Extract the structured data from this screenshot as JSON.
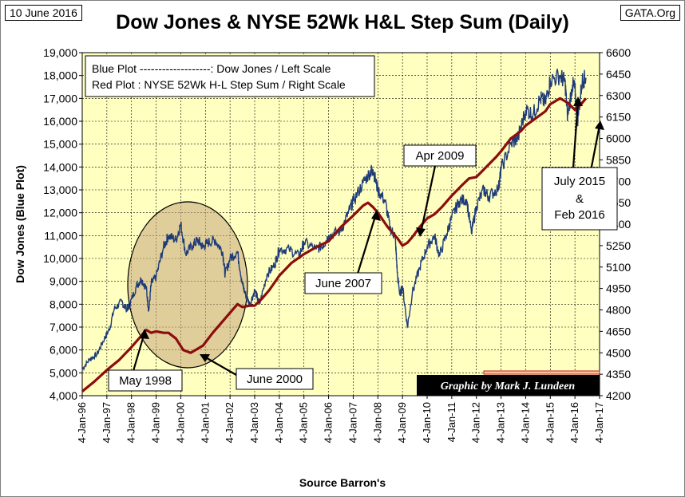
{
  "header": {
    "date": "10 June 2016",
    "source_site": "GATA.Org",
    "title": "Dow Jones & NYSE 52Wk H&L Step Sum (Daily)"
  },
  "legend": {
    "line1": "Blue Plot -------------------:  Dow Jones / Left Scale",
    "line2": "Red Plot : NYSE 52Wk H-L Step Sum / Right Scale"
  },
  "credit": "Graphic by Mark J. Lundeen",
  "colors": {
    "plot_bg": "#ffffc0",
    "blue": "#1f3c78",
    "red": "#8b0d0d",
    "circle": "#c6a57a"
  },
  "chart_data": {
    "type": "line",
    "title": "Dow Jones & NYSE 52Wk H&L Step Sum (Daily)",
    "xlabel": "Source Barron's",
    "ylabel_left": "Dow Jones    (Blue Plot)",
    "ylabel_right": "",
    "x_range": [
      1996.0,
      2017.0
    ],
    "ylim_left": [
      4000,
      19000
    ],
    "ylim_right": [
      4200,
      6600
    ],
    "grid": true,
    "x_ticks": [
      1996,
      1997,
      1998,
      1999,
      2000,
      2001,
      2002,
      2003,
      2004,
      2005,
      2006,
      2007,
      2008,
      2009,
      2010,
      2011,
      2012,
      2013,
      2014,
      2015,
      2016,
      2017
    ],
    "x_tick_labels": [
      "4-Jan-96",
      "4-Jan-97",
      "4-Jan-98",
      "4-Jan-99",
      "4-Jan-00",
      "4-Jan-01",
      "4-Jan-02",
      "4-Jan-03",
      "4-Jan-04",
      "4-Jan-05",
      "4-Jan-06",
      "4-Jan-07",
      "4-Jan-08",
      "4-Jan-09",
      "4-Jan-10",
      "4-Jan-11",
      "4-Jan-12",
      "4-Jan-13",
      "4-Jan-14",
      "4-Jan-15",
      "4-Jan-16",
      "4-Jan-17"
    ],
    "y_left_ticks": [
      4000,
      5000,
      6000,
      7000,
      8000,
      9000,
      10000,
      11000,
      12000,
      13000,
      14000,
      15000,
      16000,
      17000,
      18000,
      19000
    ],
    "y_left_tick_labels": [
      "4,000",
      "5,000",
      "6,000",
      "7,000",
      "8,000",
      "9,000",
      "10,000",
      "11,000",
      "12,000",
      "13,000",
      "14,000",
      "15,000",
      "16,000",
      "17,000",
      "18,000",
      "19,000"
    ],
    "y_right_ticks": [
      4200,
      4350,
      4500,
      4650,
      4800,
      4950,
      5100,
      5250,
      5400,
      5550,
      5700,
      5850,
      6000,
      6150,
      6300,
      6450,
      6600
    ],
    "y_right_tick_labels": [
      "4200",
      "4350",
      "4500",
      "4650",
      "4800",
      "4950",
      "5100",
      "5250",
      "5400",
      "5550",
      "5700",
      "5850",
      "6000",
      "6150",
      "6300",
      "6450",
      "6600"
    ],
    "series": [
      {
        "name": "Dow Jones (Blue Plot, Left Scale)",
        "axis": "left",
        "x": [
          1996.0,
          1996.3,
          1996.6,
          1996.9,
          1997.1,
          1997.3,
          1997.6,
          1997.8,
          1997.9,
          1998.2,
          1998.4,
          1998.6,
          1998.7,
          1998.8,
          1999.0,
          1999.3,
          1999.5,
          1999.8,
          2000.0,
          2000.2,
          2000.5,
          2000.7,
          2000.9,
          2001.1,
          2001.4,
          2001.7,
          2001.8,
          2002.0,
          2002.3,
          2002.5,
          2002.6,
          2002.8,
          2003.0,
          2003.2,
          2003.5,
          2003.8,
          2004.0,
          2004.4,
          2004.8,
          2005.0,
          2005.5,
          2005.8,
          2006.0,
          2006.5,
          2006.8,
          2007.0,
          2007.4,
          2007.7,
          2007.8,
          2008.0,
          2008.3,
          2008.5,
          2008.7,
          2008.8,
          2008.9,
          2009.0,
          2009.2,
          2009.4,
          2009.7,
          2010.0,
          2010.3,
          2010.5,
          2010.8,
          2011.0,
          2011.3,
          2011.6,
          2011.8,
          2012.0,
          2012.3,
          2012.5,
          2012.9,
          2013.0,
          2013.4,
          2013.7,
          2014.0,
          2014.3,
          2014.6,
          2014.8,
          2015.0,
          2015.4,
          2015.6,
          2015.7,
          2015.9,
          2016.0,
          2016.1,
          2016.3,
          2016.45
        ],
        "values": [
          5150,
          5600,
          5800,
          6500,
          6900,
          7800,
          8100,
          7800,
          7900,
          8800,
          9100,
          8700,
          7700,
          8900,
          9200,
          10500,
          11000,
          10800,
          11500,
          10200,
          10600,
          10800,
          10500,
          10700,
          10800,
          10300,
          9300,
          10000,
          10300,
          8900,
          8500,
          8000,
          8600,
          8000,
          9300,
          9700,
          10400,
          10400,
          10100,
          10700,
          10400,
          10600,
          11000,
          11200,
          12000,
          12500,
          13300,
          13800,
          13900,
          13000,
          12500,
          11300,
          11000,
          9200,
          8400,
          8800,
          7000,
          8500,
          9600,
          10500,
          11000,
          10100,
          11100,
          11800,
          12500,
          12600,
          11100,
          12300,
          13000,
          12700,
          13100,
          13900,
          15000,
          15300,
          16500,
          16300,
          17000,
          16800,
          17800,
          18000,
          17700,
          16200,
          17600,
          17400,
          16000,
          17800,
          17900
        ]
      },
      {
        "name": "NYSE 52Wk H-L Step Sum (Red Plot, Right Scale)",
        "axis": "right",
        "x": [
          1996.0,
          1996.5,
          1997.0,
          1997.5,
          1998.0,
          1998.4,
          1998.6,
          1998.8,
          1999.0,
          1999.3,
          1999.5,
          1999.8,
          2000.1,
          2000.4,
          2000.6,
          2000.9,
          2001.3,
          2001.7,
          2002.0,
          2002.3,
          2002.5,
          2002.8,
          2003.0,
          2003.3,
          2003.6,
          2004.0,
          2004.5,
          2005.0,
          2005.5,
          2006.0,
          2006.5,
          2007.0,
          2007.4,
          2007.6,
          2007.8,
          2008.0,
          2008.4,
          2008.8,
          2009.0,
          2009.2,
          2009.4,
          2009.7,
          2010.0,
          2010.3,
          2010.6,
          2011.0,
          2011.4,
          2011.7,
          2012.0,
          2012.4,
          2012.8,
          2013.0,
          2013.4,
          2013.8,
          2014.0,
          2014.4,
          2014.8,
          2015.0,
          2015.4,
          2015.7,
          2016.0,
          2016.2,
          2016.45
        ],
        "values": [
          4230,
          4300,
          4380,
          4450,
          4540,
          4620,
          4660,
          4640,
          4650,
          4640,
          4640,
          4600,
          4520,
          4500,
          4520,
          4550,
          4640,
          4720,
          4780,
          4840,
          4820,
          4830,
          4830,
          4880,
          4940,
          5040,
          5130,
          5190,
          5240,
          5280,
          5380,
          5460,
          5530,
          5550,
          5520,
          5480,
          5380,
          5300,
          5250,
          5270,
          5310,
          5380,
          5440,
          5470,
          5520,
          5600,
          5670,
          5720,
          5730,
          5800,
          5870,
          5910,
          6000,
          6050,
          6090,
          6140,
          6190,
          6240,
          6280,
          6250,
          6200,
          6230,
          6280
        ]
      }
    ]
  },
  "annotations": {
    "may_1998": "May 1998",
    "june_2000": "June 2000",
    "june_2007": "June 2007",
    "apr_2009": "Apr 2009",
    "july_2015_line1": "July 2015",
    "july_2015_line2": "&",
    "july_2015_line3": "Feb 2016"
  }
}
